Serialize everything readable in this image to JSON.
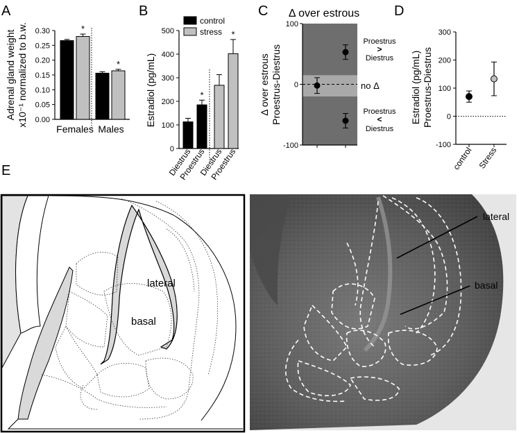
{
  "panel_labels": {
    "a": "A",
    "b": "B",
    "c": "C",
    "d": "D",
    "e": "E"
  },
  "chart_data": [
    {
      "panel": "A",
      "type": "bar",
      "ylabel_line1": "Adrenal gland weight",
      "ylabel_line2": "x10⁻¹ normalized to b.w.",
      "ylim": [
        0,
        0.3
      ],
      "yticks": [
        "0.00",
        "0.05",
        "0.10",
        "0.15",
        "0.20",
        "0.25",
        "0.30"
      ],
      "groups": [
        "Females",
        "Males"
      ],
      "bars": [
        {
          "group": "Females",
          "condition": "control",
          "value": 0.266,
          "err": 0.004,
          "sig": ""
        },
        {
          "group": "Females",
          "condition": "stress",
          "value": 0.28,
          "err": 0.008,
          "sig": "*"
        },
        {
          "group": "Males",
          "condition": "control",
          "value": 0.156,
          "err": 0.005,
          "sig": ""
        },
        {
          "group": "Males",
          "condition": "stress",
          "value": 0.164,
          "err": 0.005,
          "sig": "*"
        }
      ]
    },
    {
      "panel": "B",
      "type": "bar",
      "ylabel": "Estradiol (pg/mL)",
      "ylim": [
        0,
        500
      ],
      "yticks": [
        "0",
        "100",
        "200",
        "300",
        "400",
        "500"
      ],
      "legend": [
        {
          "label": "control",
          "color": "#000000"
        },
        {
          "label": "stress",
          "color": "#c0c0c0"
        }
      ],
      "categories": [
        "Diestrus",
        "Proestrus",
        "Diestrus",
        "Proestrus"
      ],
      "bars": [
        {
          "condition": "control",
          "value": 113,
          "err": 15,
          "sig": ""
        },
        {
          "condition": "control",
          "value": 185,
          "err": 20,
          "sig": "*"
        },
        {
          "condition": "stress",
          "value": 268,
          "err": 45,
          "sig": ""
        },
        {
          "condition": "stress",
          "value": 402,
          "err": 60,
          "sig": "*"
        }
      ]
    },
    {
      "panel": "C",
      "type": "scatter",
      "title": "Δ over estrous",
      "ylabel_line1": "Δ over estrous",
      "ylabel_line2": "Proestrus-Diestrus",
      "ylim": [
        -100,
        100
      ],
      "yticks": [
        "100",
        "0",
        "-100"
      ],
      "band": [
        -20,
        15
      ],
      "points": [
        {
          "x": 1,
          "value": -2,
          "err": 13
        },
        {
          "x": 2,
          "value": 53,
          "err": 12
        },
        {
          "x": 2,
          "value": -60,
          "err": 12
        }
      ],
      "annotations": {
        "upper_top": "Proestrus",
        "upper_sym": ">",
        "upper_bottom": "Diestrus",
        "middle": "no Δ",
        "lower_top": "Proestrus",
        "lower_sym": "<",
        "lower_bottom": "Diestrus"
      }
    },
    {
      "panel": "D",
      "type": "scatter",
      "ylabel_line1": "Estradiol (pg/mL)",
      "ylabel_line2": "Proestrus-Diestrus",
      "ylim": [
        -100,
        300
      ],
      "yticks": [
        "300",
        "200",
        "100",
        "0",
        "-100"
      ],
      "categories": [
        "control",
        "Stress"
      ],
      "points": [
        {
          "category": "control",
          "value": 70,
          "err": 20,
          "color": "#000000"
        },
        {
          "category": "Stress",
          "value": 133,
          "err": 60,
          "color": "#c0c0c0"
        }
      ]
    }
  ],
  "panel_e": {
    "labels": {
      "lateral": "lateral",
      "basal": "basal"
    },
    "photo_labels": {
      "lateral": "lateral",
      "basal": "basal"
    }
  },
  "colors": {
    "control": "#000000",
    "stress": "#c0c0c0",
    "band_dark": "#6e6e6e",
    "band_light": "#a9a9a9"
  }
}
